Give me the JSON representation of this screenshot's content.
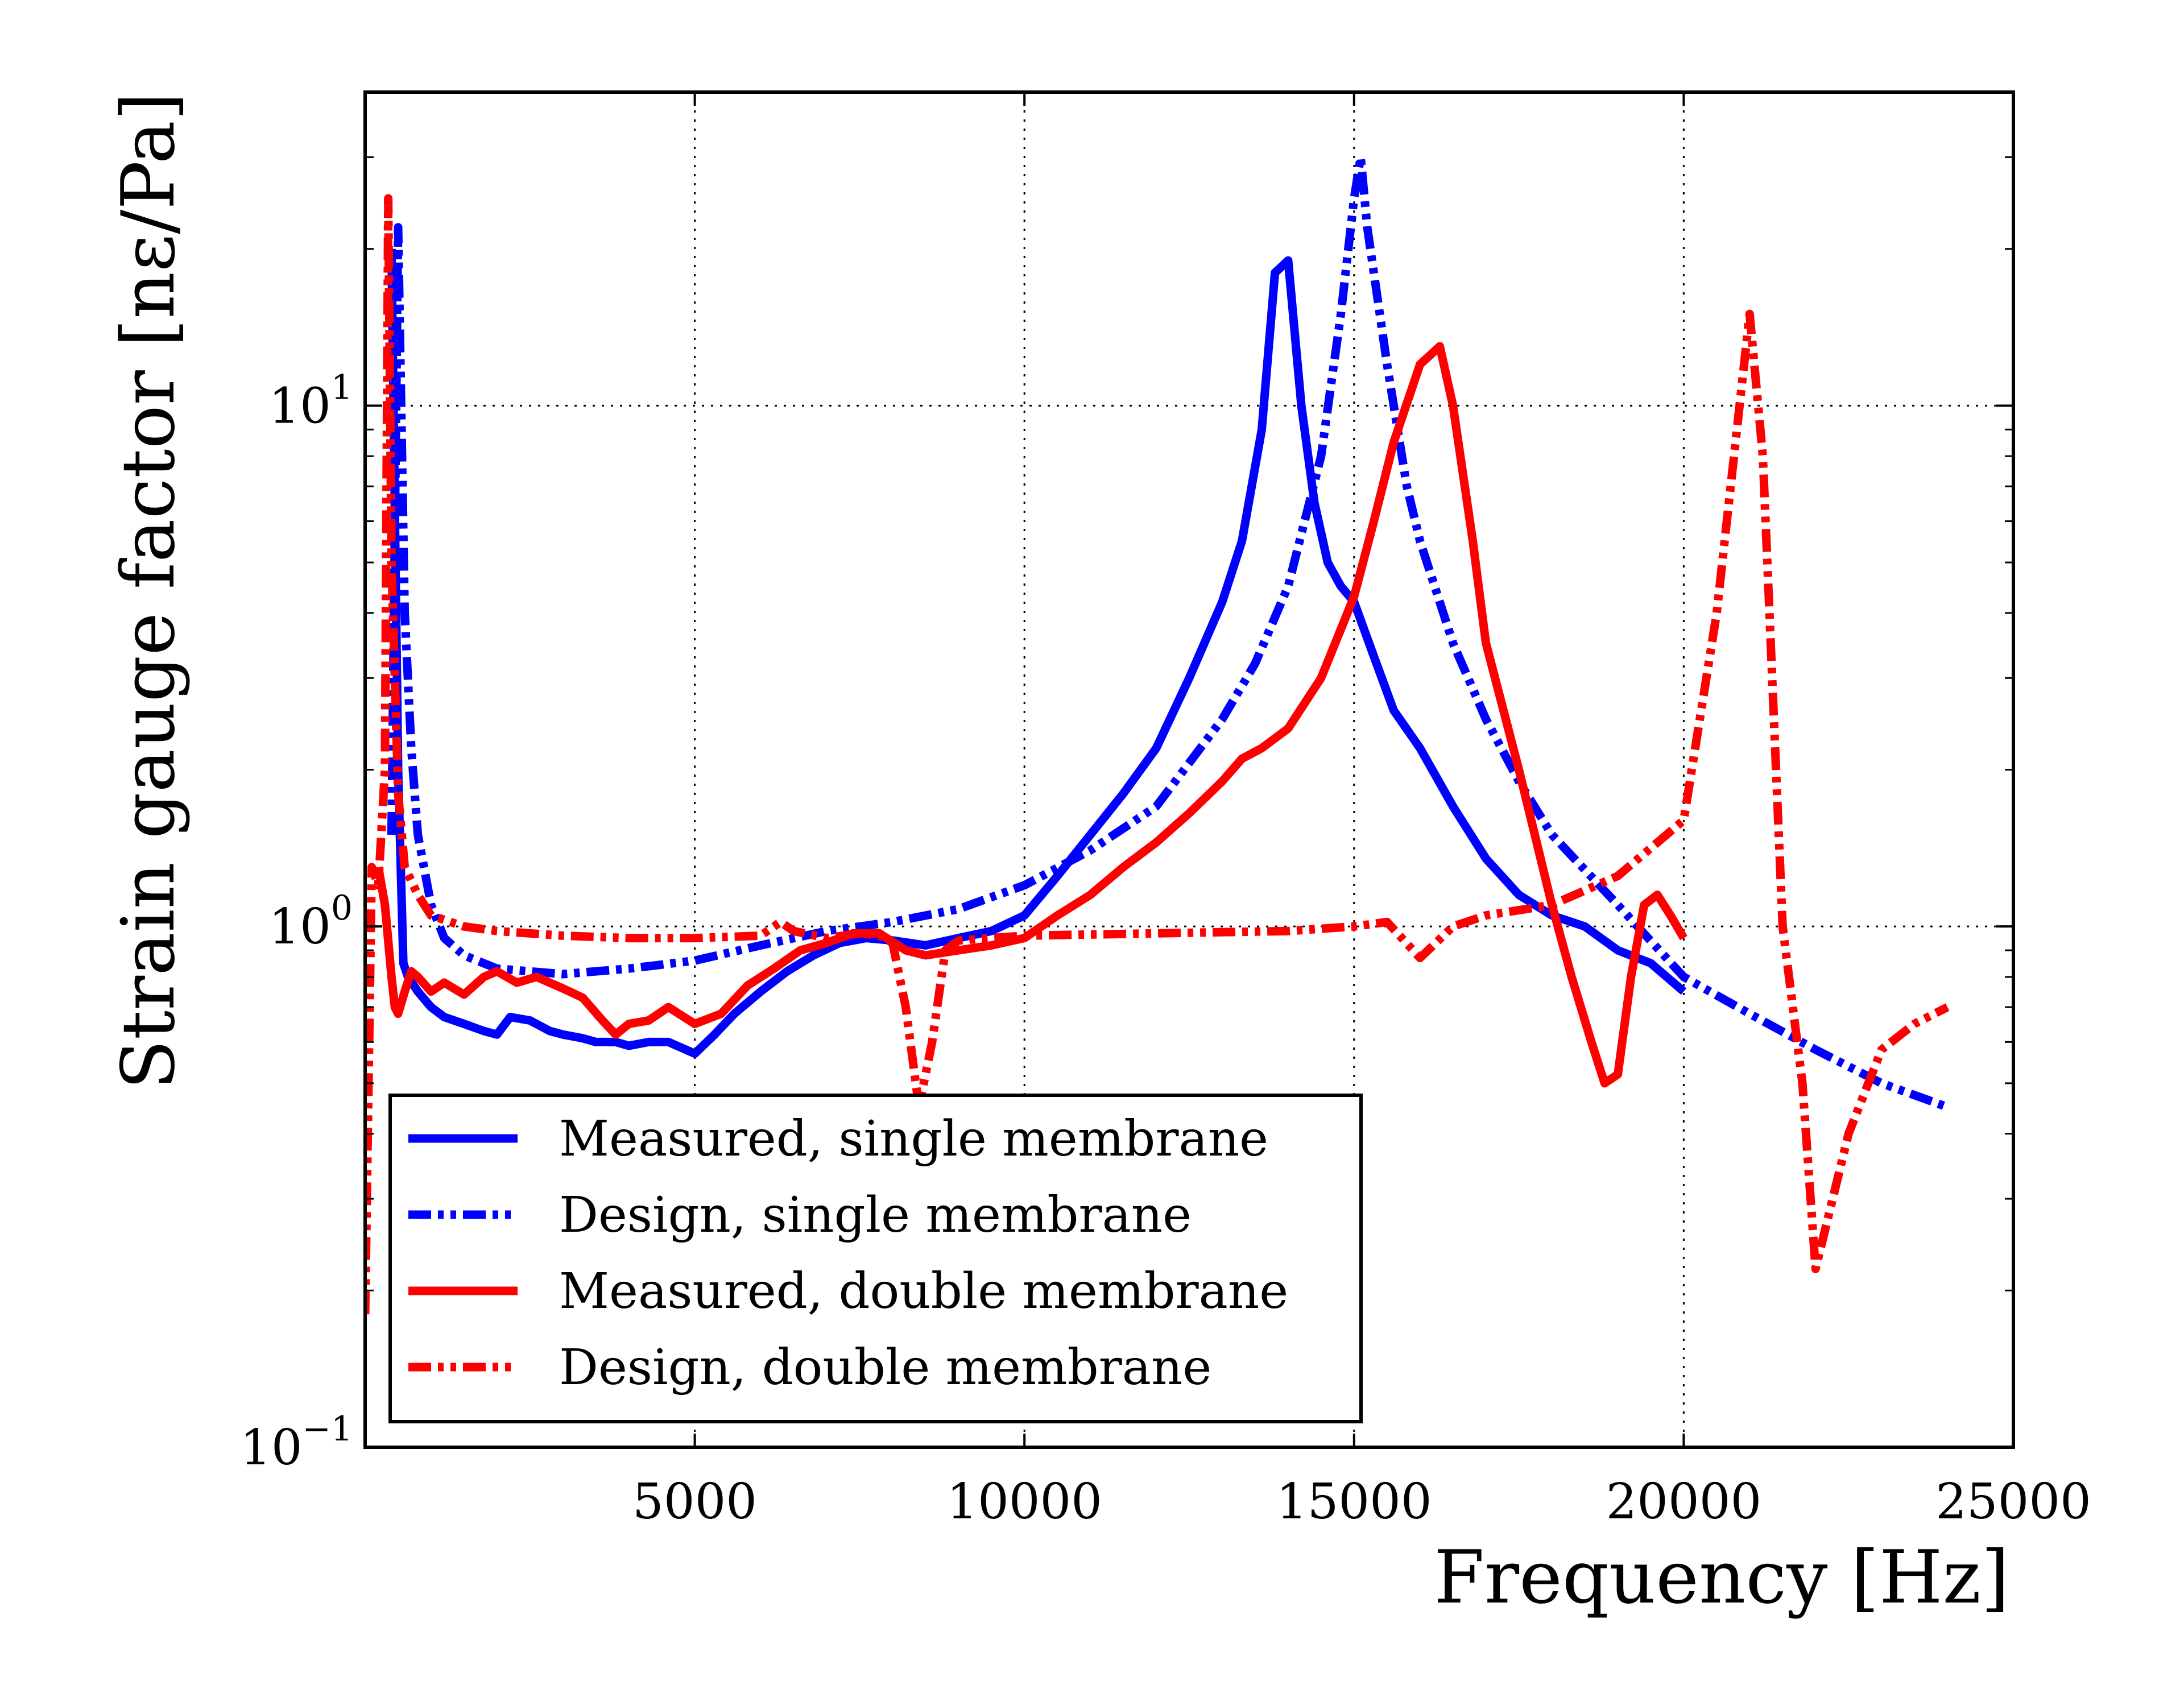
{
  "chart_data": {
    "type": "line",
    "title": "",
    "xlabel": "Frequency [Hz]",
    "ylabel": "Strain gauge factor [nε/Pa]",
    "xscale": "linear",
    "yscale": "log",
    "xlim": [
      0,
      25000
    ],
    "ylim": [
      0.1,
      40
    ],
    "grid": true,
    "legend_position": "lower-left",
    "x_ticks": [
      5000,
      10000,
      15000,
      20000,
      25000
    ],
    "x_tick_labels": [
      "5000",
      "10000",
      "15000",
      "20000",
      "25000"
    ],
    "y_ticks": [
      0.1,
      1,
      10
    ],
    "y_tick_labels": [
      {
        "base": "10",
        "exp": "−1"
      },
      {
        "base": "10",
        "exp": "0"
      },
      {
        "base": "10",
        "exp": "1"
      }
    ],
    "series": [
      {
        "name": "Measured, single membrane",
        "color": "#0000ff",
        "style": "solid",
        "x": [
          400,
          500,
          580,
          650,
          800,
          1000,
          1200,
          1500,
          1800,
          2000,
          2200,
          2500,
          2800,
          3000,
          3300,
          3500,
          3800,
          4000,
          4300,
          4600,
          5000,
          5300,
          5600,
          6000,
          6400,
          6800,
          7200,
          7600,
          8000,
          8500,
          9000,
          9500,
          10000,
          10500,
          11000,
          11500,
          12000,
          12500,
          13000,
          13300,
          13600,
          13800,
          14000,
          14200,
          14400,
          14600,
          14800,
          15000,
          15300,
          15600,
          16000,
          16500,
          17000,
          17500,
          18000,
          18500,
          19000,
          19500,
          20000
        ],
        "y": [
          20,
          2,
          0.85,
          0.8,
          0.75,
          0.7,
          0.67,
          0.65,
          0.63,
          0.62,
          0.67,
          0.66,
          0.63,
          0.62,
          0.61,
          0.6,
          0.6,
          0.59,
          0.6,
          0.6,
          0.57,
          0.62,
          0.68,
          0.75,
          0.82,
          0.88,
          0.93,
          0.95,
          0.94,
          0.92,
          0.95,
          0.98,
          1.05,
          1.25,
          1.5,
          1.8,
          2.2,
          3.0,
          4.2,
          5.5,
          9.0,
          18.0,
          19.0,
          10.0,
          6.5,
          5.0,
          4.5,
          4.2,
          3.3,
          2.6,
          2.2,
          1.7,
          1.35,
          1.15,
          1.05,
          1.0,
          0.9,
          0.85,
          0.75
        ]
      },
      {
        "name": "Design, single membrane",
        "color": "#0000ff",
        "style": "dash-dot-dot",
        "x": [
          400,
          500,
          600,
          700,
          800,
          1000,
          1200,
          1500,
          2000,
          2500,
          3000,
          3500,
          4000,
          5000,
          6000,
          7000,
          8000,
          9000,
          10000,
          11000,
          12000,
          13000,
          13500,
          14000,
          14500,
          14800,
          15000,
          15100,
          15200,
          15500,
          15800,
          16000,
          16500,
          17000,
          17500,
          18000,
          19000,
          20000,
          21000,
          22000,
          23000,
          24000
        ],
        "y": [
          1.5,
          22,
          4.0,
          2.2,
          1.5,
          1.1,
          0.95,
          0.88,
          0.83,
          0.82,
          0.81,
          0.82,
          0.83,
          0.86,
          0.92,
          0.98,
          1.02,
          1.08,
          1.2,
          1.4,
          1.7,
          2.5,
          3.2,
          4.5,
          8.0,
          15.0,
          25.0,
          30.0,
          22.0,
          12.0,
          7.0,
          5.5,
          3.5,
          2.5,
          1.9,
          1.5,
          1.1,
          0.8,
          0.68,
          0.58,
          0.5,
          0.45
        ]
      },
      {
        "name": "Measured, double membrane",
        "color": "#ff0000",
        "style": "solid",
        "x": [
          200,
          300,
          400,
          450,
          500,
          600,
          700,
          800,
          1000,
          1200,
          1500,
          1800,
          2000,
          2300,
          2600,
          3000,
          3300,
          3600,
          3800,
          4000,
          4300,
          4600,
          5000,
          5400,
          5800,
          6200,
          6600,
          7000,
          7400,
          7800,
          8200,
          8500,
          9000,
          9500,
          10000,
          10500,
          11000,
          11500,
          12000,
          12500,
          13000,
          13300,
          13600,
          14000,
          14500,
          15000,
          15300,
          15600,
          16000,
          16300,
          16500,
          16800,
          17000,
          17500,
          18000,
          18300,
          18600,
          18800,
          19000,
          19200,
          19400,
          19600,
          19800,
          20000
        ],
        "y": [
          1.3,
          1.1,
          0.8,
          0.7,
          0.68,
          0.75,
          0.82,
          0.8,
          0.75,
          0.78,
          0.74,
          0.8,
          0.82,
          0.78,
          0.8,
          0.76,
          0.73,
          0.66,
          0.62,
          0.65,
          0.66,
          0.7,
          0.65,
          0.68,
          0.77,
          0.83,
          0.9,
          0.93,
          0.97,
          0.97,
          0.9,
          0.88,
          0.9,
          0.92,
          0.95,
          1.05,
          1.15,
          1.3,
          1.45,
          1.65,
          1.9,
          2.1,
          2.2,
          2.4,
          3.0,
          4.3,
          6.0,
          8.5,
          12.0,
          13.0,
          10.0,
          5.5,
          3.5,
          2.0,
          1.1,
          0.8,
          0.6,
          0.5,
          0.52,
          0.8,
          1.1,
          1.15,
          1.05,
          0.95
        ]
      },
      {
        "name": "Design, double membrane",
        "color": "#ff0000",
        "style": "dash-dot-dot",
        "x": [
          0,
          100,
          200,
          300,
          350,
          400,
          450,
          500,
          600,
          800,
          1000,
          1500,
          2000,
          3000,
          4000,
          5000,
          6000,
          6300,
          6500,
          7000,
          7500,
          7800,
          8000,
          8200,
          8400,
          8600,
          8800,
          9000,
          10000,
          12000,
          14000,
          15000,
          15500,
          16000,
          16500,
          17000,
          18000,
          19000,
          20000,
          20500,
          21000,
          21200,
          21500,
          21800,
          22000,
          22500,
          23000,
          23500,
          24000
        ],
        "y": [
          0.18,
          1.3,
          1.2,
          2.0,
          25.0,
          5.0,
          3.0,
          1.8,
          1.3,
          1.15,
          1.05,
          1.0,
          0.98,
          0.96,
          0.95,
          0.95,
          0.96,
          1.02,
          0.98,
          0.95,
          0.97,
          0.96,
          0.93,
          0.7,
          0.45,
          0.6,
          0.9,
          0.94,
          0.96,
          0.97,
          0.98,
          1.0,
          1.02,
          0.87,
          1.0,
          1.05,
          1.1,
          1.25,
          1.6,
          4.0,
          15.0,
          8.0,
          1.0,
          0.5,
          0.22,
          0.4,
          0.58,
          0.65,
          0.7
        ]
      }
    ]
  }
}
